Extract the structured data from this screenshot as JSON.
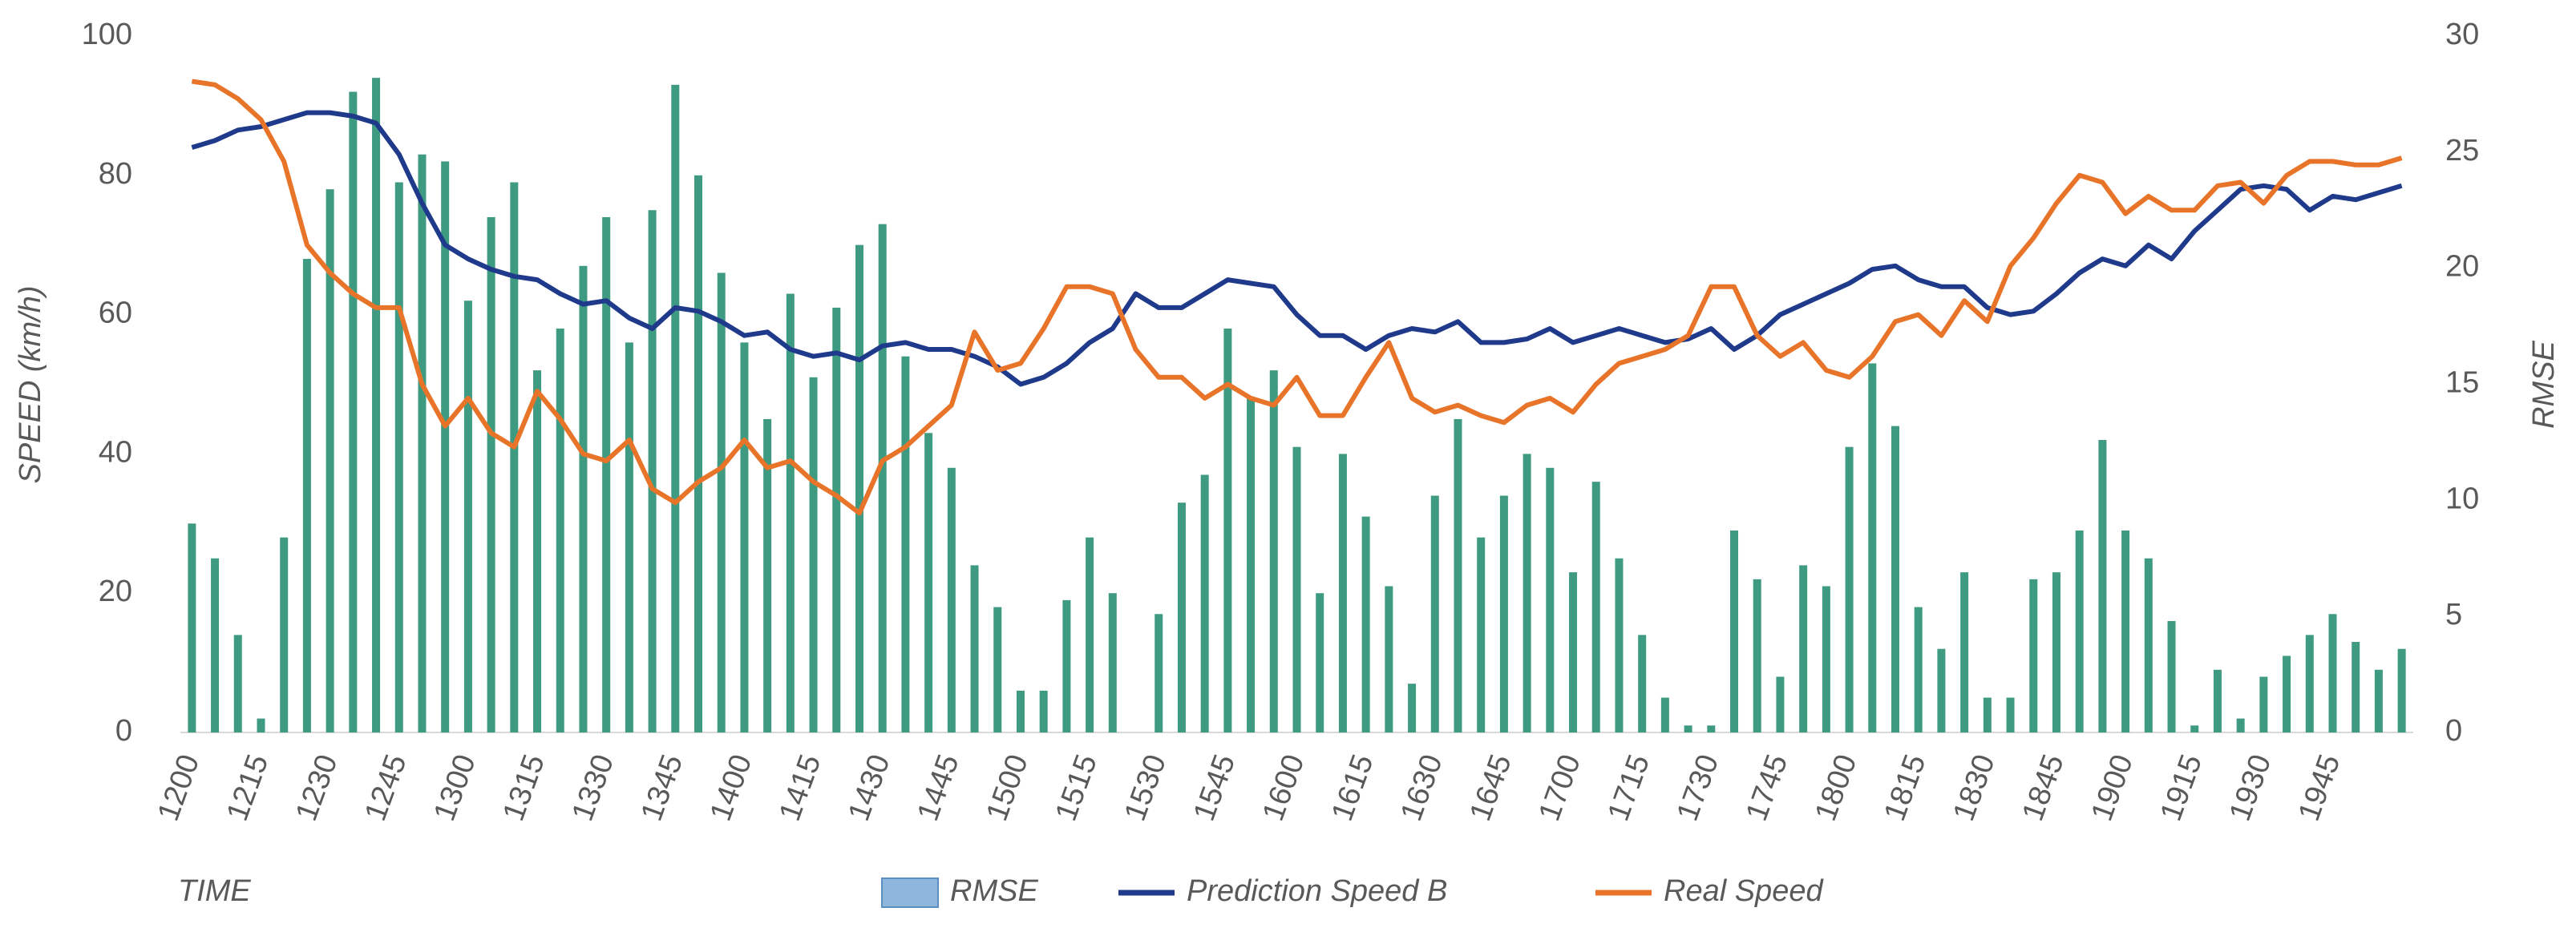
{
  "chart_data": {
    "type": "combo",
    "x_label": "TIME",
    "y_label": "SPEED (km/h)",
    "y2_label": "RMSE",
    "legend": "bottom",
    "grid": false,
    "categories": [
      "1200",
      null,
      null,
      "1215",
      null,
      null,
      "1230",
      null,
      null,
      "1245",
      null,
      null,
      "1300",
      null,
      null,
      "1315",
      null,
      null,
      "1330",
      null,
      null,
      "1345",
      null,
      null,
      "1400",
      null,
      null,
      "1415",
      null,
      null,
      "1430",
      null,
      null,
      "1445",
      null,
      null,
      "1500",
      null,
      null,
      "1515",
      null,
      null,
      "1530",
      null,
      null,
      "1545",
      null,
      null,
      "1600",
      null,
      null,
      "1615",
      null,
      null,
      "1630",
      null,
      null,
      "1645",
      null,
      null,
      "1700",
      null,
      null,
      "1715",
      null,
      null,
      "1730",
      null,
      null,
      "1745",
      null,
      null,
      "1800",
      null,
      null,
      "1815",
      null,
      null,
      "1830",
      null,
      null,
      "1845",
      null,
      null,
      "1900",
      null,
      null,
      "1915",
      null,
      null,
      "1930",
      null,
      null,
      "1945",
      null,
      null,
      null
    ],
    "ylim": [
      0,
      100
    ],
    "yticks": [
      0,
      20,
      40,
      60,
      80,
      100
    ],
    "y2lim": [
      0,
      30
    ],
    "y2ticks": [
      0,
      5,
      10,
      15,
      20,
      25,
      30
    ],
    "series": [
      {
        "name": "RMSE",
        "type": "bar",
        "axis": "y2",
        "color": "#3f9a82",
        "values": [
          9,
          7.5,
          4.2,
          0.6,
          8.4,
          20.4,
          23.4,
          27.6,
          28.2,
          23.7,
          24.9,
          24.6,
          18.6,
          22.2,
          23.7,
          15.6,
          17.4,
          20.1,
          22.2,
          16.8,
          22.5,
          27.9,
          24,
          19.8,
          16.8,
          13.5,
          18.9,
          15.3,
          18.3,
          21,
          21.9,
          16.2,
          12.9,
          11.4,
          7.2,
          5.4,
          1.8,
          1.8,
          5.7,
          8.4,
          6,
          0,
          5.1,
          9.9,
          11.1,
          17.4,
          14.4,
          15.6,
          12.3,
          6,
          12,
          9.3,
          6.3,
          2.1,
          10.2,
          13.5,
          8.4,
          10.2,
          12,
          11.4,
          6.9,
          10.8,
          7.5,
          4.2,
          1.5,
          0.3,
          0.3,
          8.7,
          6.6,
          2.4,
          7.2,
          6.3,
          12.3,
          15.9,
          13.2,
          5.4,
          3.6,
          6.9,
          1.5,
          1.5,
          6.6,
          6.9,
          8.7,
          12.6,
          8.7,
          7.5,
          4.8,
          0.3,
          2.7,
          0.6,
          2.4,
          3.3,
          4.2,
          5.1,
          3.9,
          2.7,
          3.6
        ]
      },
      {
        "name": "Prediction Speed B",
        "type": "line",
        "color": "#1f3a8a",
        "values": [
          84,
          85,
          86.5,
          87,
          88,
          89,
          89,
          88.5,
          87.5,
          83,
          76,
          70,
          68,
          66.5,
          65.5,
          65,
          63,
          61.5,
          62,
          59.5,
          58,
          61,
          60.5,
          59,
          57,
          57.5,
          55,
          54,
          54.5,
          53.5,
          55.5,
          56,
          55,
          55,
          54,
          52.5,
          50,
          51,
          53,
          56,
          58,
          63,
          61,
          61,
          63,
          65,
          64.5,
          64,
          60,
          57,
          57,
          55,
          57,
          58,
          57.5,
          59,
          56,
          56,
          56.5,
          58,
          56,
          57,
          58,
          57,
          56,
          56.5,
          58,
          55,
          57,
          60,
          61.5,
          63,
          64.5,
          66.5,
          67,
          65,
          64,
          64,
          61,
          60,
          60.5,
          63,
          66,
          68,
          67,
          70,
          68,
          72,
          75,
          78,
          78.5,
          78,
          75,
          77,
          76.5,
          77.5,
          78.5
        ]
      },
      {
        "name": "Real Speed",
        "type": "line",
        "color": "#e8742a",
        "values": [
          93.5,
          93,
          91,
          88,
          82,
          70,
          66,
          63,
          61,
          61,
          50,
          44,
          48,
          43,
          41,
          49,
          45,
          40,
          39,
          42,
          35,
          33,
          36,
          38,
          42,
          38,
          39,
          36,
          34,
          31.5,
          39,
          41,
          44,
          47,
          57.5,
          52,
          53,
          58,
          64,
          64,
          63,
          55,
          51,
          51,
          48,
          50,
          48,
          47,
          51,
          45.5,
          45.5,
          51,
          56,
          48,
          46,
          47,
          45.5,
          44.5,
          47,
          48,
          46,
          50,
          53,
          54,
          55,
          57,
          64,
          64,
          57,
          54,
          56,
          52,
          51,
          54,
          59,
          60,
          57,
          62,
          59,
          67,
          71,
          76,
          80,
          79,
          74.5,
          77,
          75,
          75,
          78.5,
          79,
          76,
          80,
          82,
          82,
          81.5,
          81.5,
          82.5
        ]
      }
    ]
  }
}
